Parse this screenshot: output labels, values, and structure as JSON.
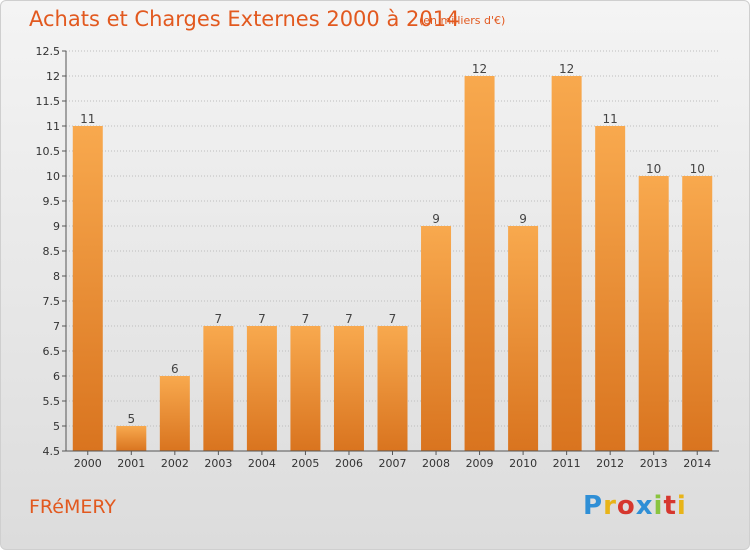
{
  "header": {
    "title": "Achats et Charges Externes 2000 à 2014",
    "subtitle": "(en milliers d'€)"
  },
  "footer": {
    "commune": "FRéMERY",
    "logo_text": "Proxiti"
  },
  "colors": {
    "accent": "#e2591f",
    "bar_light": "#f8a94e",
    "bar_dark": "#d9741f"
  },
  "chart_data": {
    "type": "bar",
    "categories": [
      "2000",
      "2001",
      "2002",
      "2003",
      "2004",
      "2005",
      "2006",
      "2007",
      "2008",
      "2009",
      "2010",
      "2011",
      "2012",
      "2013",
      "2014"
    ],
    "values": [
      11,
      5,
      6,
      7,
      7,
      7,
      7,
      7,
      9,
      12,
      9,
      12,
      11,
      10,
      10
    ],
    "title": "Achats et Charges Externes 2000 à 2014",
    "subtitle": "(en milliers d'€)",
    "xlabel": "",
    "ylabel": "",
    "ylim": [
      4.5,
      12.5
    ],
    "yticks": [
      4.5,
      5,
      5.5,
      6,
      6.5,
      7,
      7.5,
      8,
      8.5,
      9,
      9.5,
      10,
      10.5,
      11,
      11.5,
      12,
      12.5
    ],
    "ytick_labels": [
      "4.5",
      "5",
      "5.5",
      "6",
      "6.5",
      "7",
      "7.5",
      "8",
      "8.5",
      "9",
      "9.5",
      "10",
      "10.5",
      "11",
      "11.5",
      "12",
      "12.5"
    ],
    "value_labels": [
      "11",
      "5",
      "6",
      "7",
      "7",
      "7",
      "7",
      "7",
      "9",
      "12",
      "9",
      "12",
      "11",
      "10",
      "10"
    ],
    "grid": true,
    "legend": "none"
  }
}
